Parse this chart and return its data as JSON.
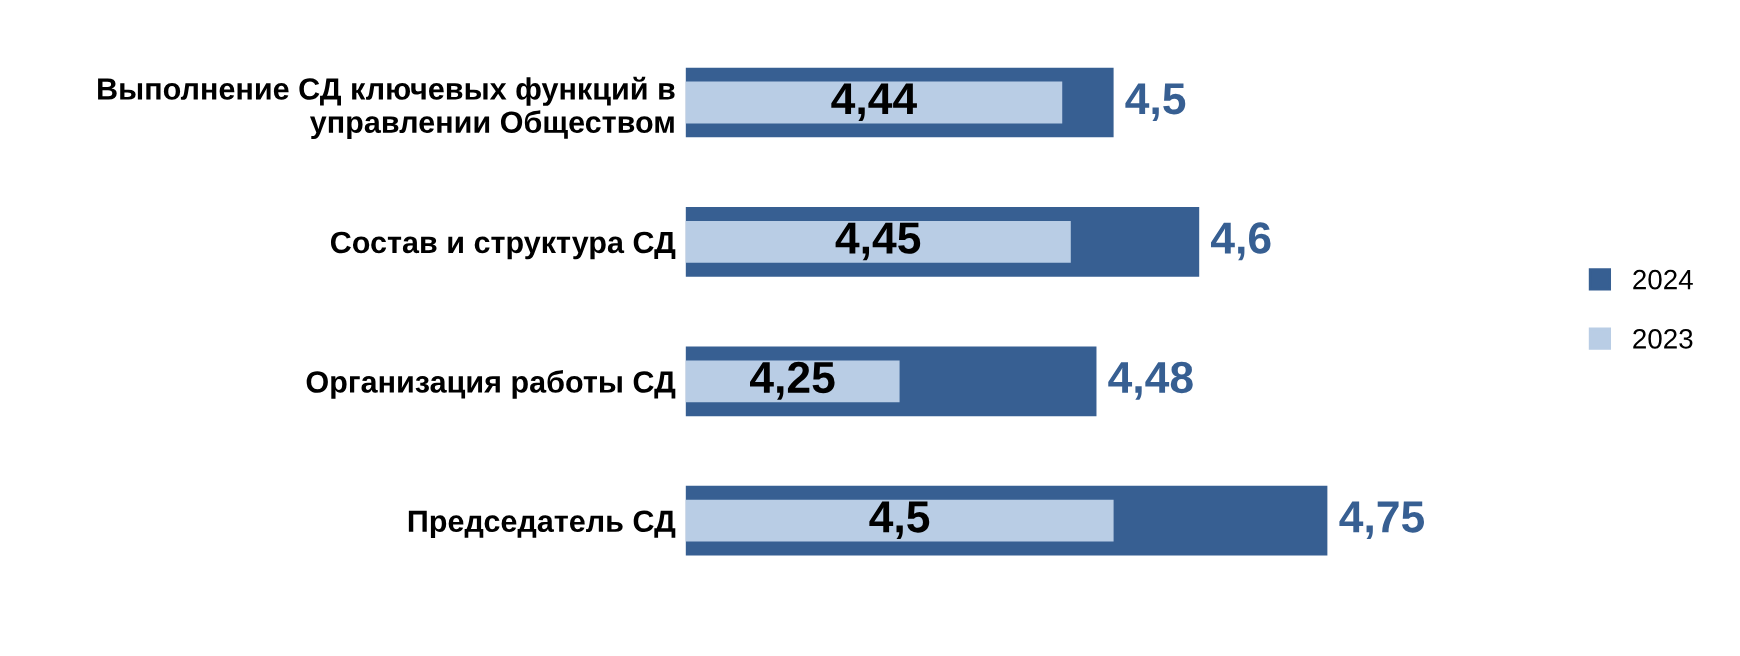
{
  "chart_data": {
    "type": "bar",
    "orientation": "horizontal",
    "categories": [
      "Выполнение СД ключевых функций в\nуправлении Обществом",
      "Состав и структура СД",
      "Организация работы СД",
      "Председатель СД"
    ],
    "series": [
      {
        "name": "2024",
        "color": "#375f92",
        "values": [
          4.5,
          4.6,
          4.48,
          4.75
        ],
        "value_labels": [
          "4,5",
          "4,6",
          "4,48",
          "4,75"
        ]
      },
      {
        "name": "2023",
        "color": "#b9cde5",
        "values": [
          4.44,
          4.45,
          4.25,
          4.5
        ],
        "value_labels": [
          "4,44",
          "4,45",
          "4,25",
          "4,5"
        ]
      }
    ],
    "xlim": [
      4,
      4.75
    ],
    "tick_labels": "y",
    "legend": "right",
    "grid": false
  }
}
